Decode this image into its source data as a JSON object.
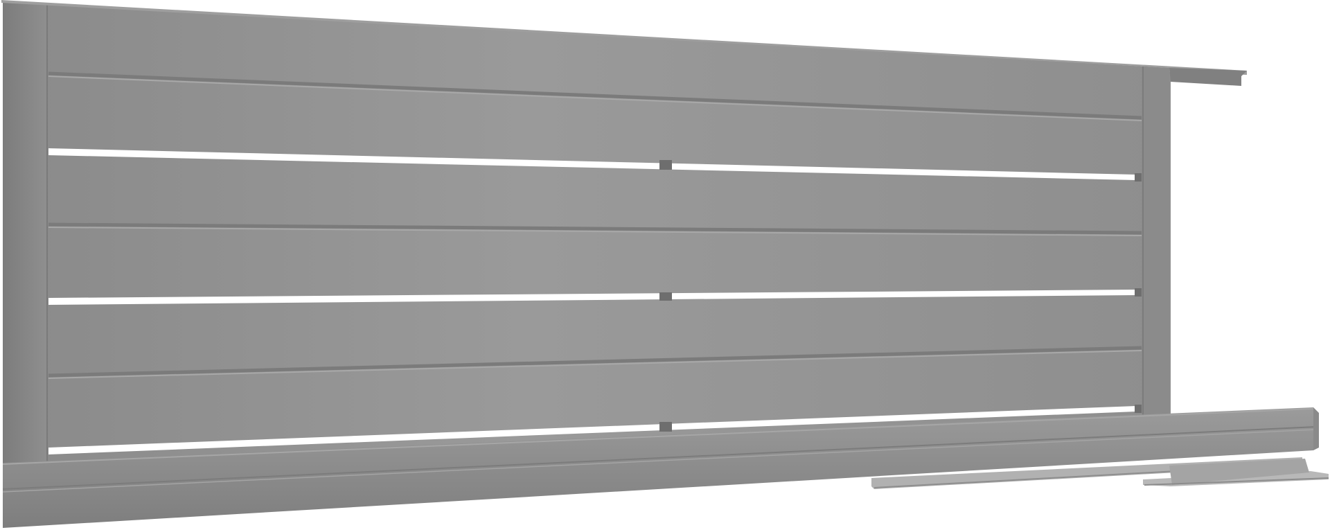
{
  "image": {
    "subject": "sliding-gate",
    "colors": {
      "background": "#ffffff",
      "frame": "#8c8c8c",
      "frame_dark": "#6f6f6f",
      "slat": "#959595",
      "slat_light": "#a3a3a3",
      "slat_shadow": "#7a7a7a",
      "gap": "#ffffff",
      "bracket": "#b4b4b4",
      "bracket_dark": "#8e8e8e"
    }
  }
}
